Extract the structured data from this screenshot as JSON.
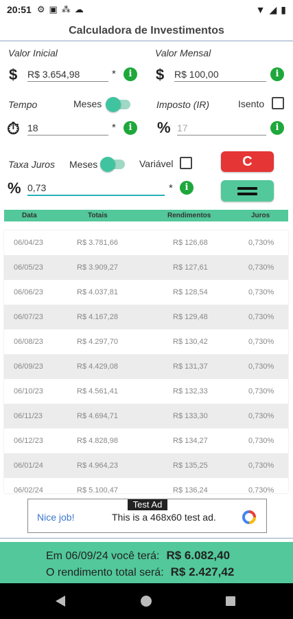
{
  "status_bar": {
    "time": "20:51"
  },
  "app_title": "Calculadora de Investimentos",
  "valor_inicial": {
    "label": "Valor Inicial",
    "value": "R$ 3.654,98"
  },
  "valor_mensal": {
    "label": "Valor Mensal",
    "value": "R$ 100,00"
  },
  "tempo": {
    "label": "Tempo",
    "toggle_label": "Meses",
    "toggle_on": true,
    "value": "18"
  },
  "imposto": {
    "label": "Imposto (IR)",
    "checkbox_label": "Isento",
    "checked": false,
    "value": "17"
  },
  "taxa_juros": {
    "label": "Taxa Juros",
    "toggle_label": "Meses",
    "toggle_on": true,
    "variavel_label": "Variável",
    "variavel_checked": false,
    "value": "0,73"
  },
  "symbols": {
    "dollar": "$",
    "percent": "%",
    "asterisk": "*",
    "info": "i"
  },
  "buttons": {
    "clear_label": "C"
  },
  "table": {
    "headers": [
      "Data",
      "Totais",
      "Rendimentos",
      "Juros"
    ],
    "rows": [
      [
        "06/04/23",
        "R$ 3.781,66",
        "R$ 126,68",
        "0,730%"
      ],
      [
        "06/05/23",
        "R$ 3.909,27",
        "R$ 127,61",
        "0,730%"
      ],
      [
        "06/06/23",
        "R$ 4.037,81",
        "R$ 128,54",
        "0,730%"
      ],
      [
        "06/07/23",
        "R$ 4.167,28",
        "R$ 129,48",
        "0,730%"
      ],
      [
        "06/08/23",
        "R$ 4.297,70",
        "R$ 130,42",
        "0,730%"
      ],
      [
        "06/09/23",
        "R$ 4.429,08",
        "R$ 131,37",
        "0,730%"
      ],
      [
        "06/10/23",
        "R$ 4.561,41",
        "R$ 132,33",
        "0,730%"
      ],
      [
        "06/11/23",
        "R$ 4.694,71",
        "R$ 133,30",
        "0,730%"
      ],
      [
        "06/12/23",
        "R$ 4.828,98",
        "R$ 134,27",
        "0,730%"
      ],
      [
        "06/01/24",
        "R$ 4.964,23",
        "R$ 135,25",
        "0,730%"
      ],
      [
        "06/02/24",
        "R$ 5.100,47",
        "R$ 136,24",
        "0,730%"
      ]
    ]
  },
  "ad": {
    "badge": "Test Ad",
    "nice": "Nice job!",
    "text": "This is a 468x60 test ad."
  },
  "summary": {
    "line1_label": "Em 06/09/24 você terá:",
    "line1_value": "R$ 6.082,40",
    "line2_label": "O rendimento total será:",
    "line2_value": "R$ 2.427,42"
  }
}
